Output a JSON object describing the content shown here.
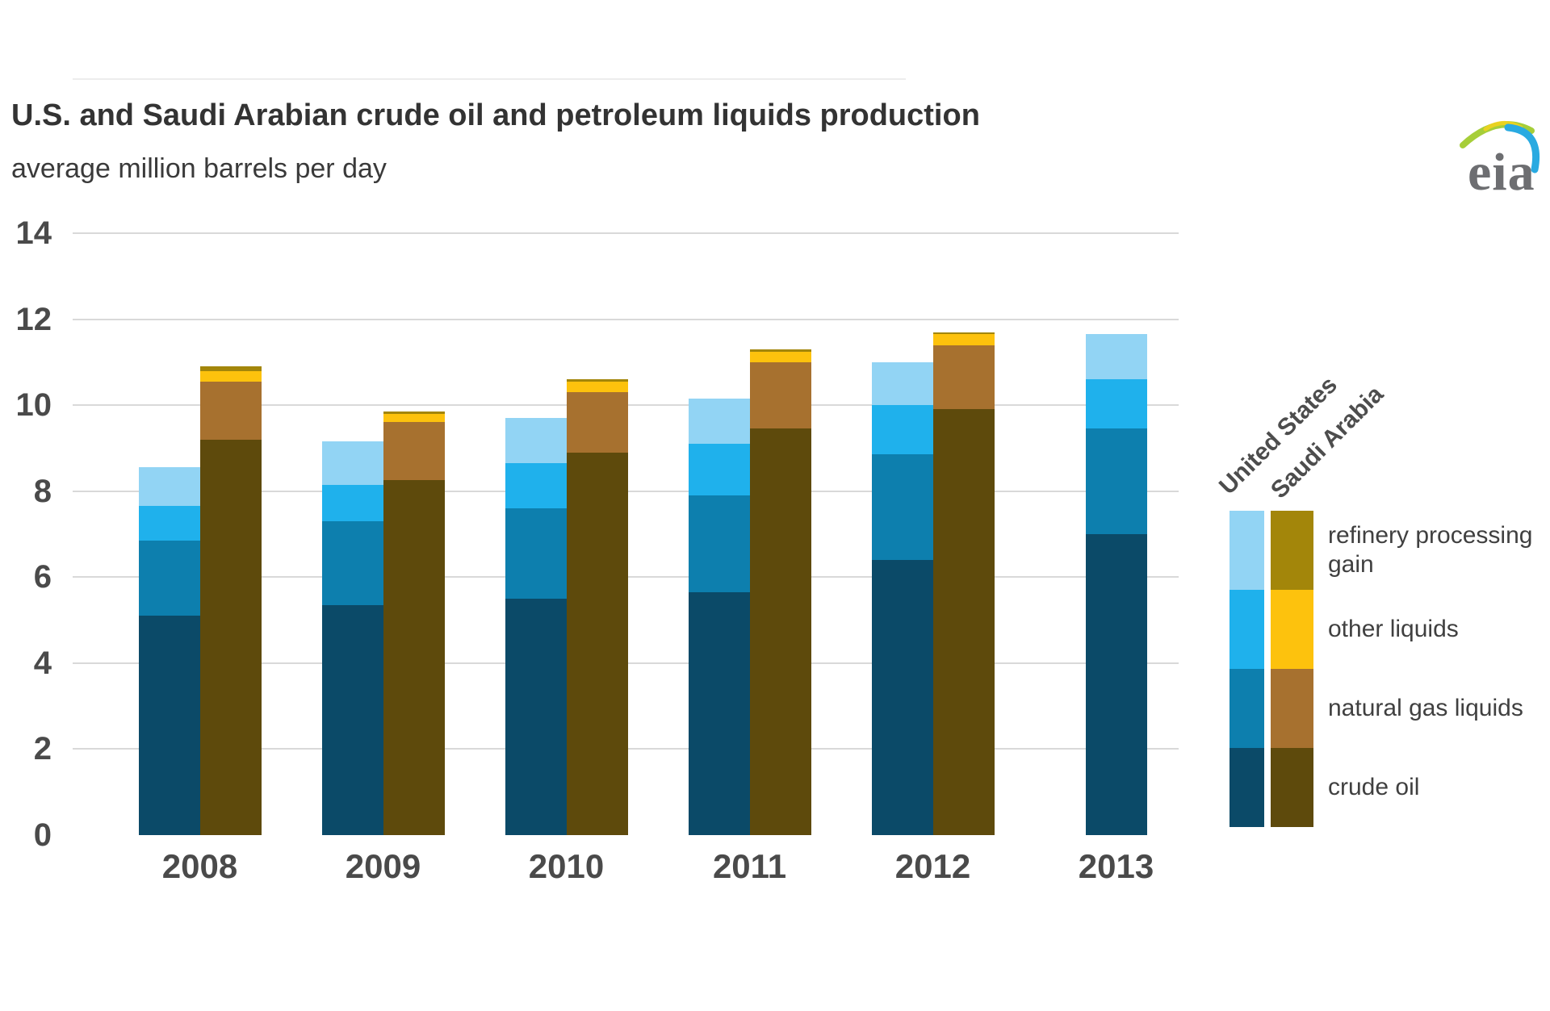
{
  "header": {
    "title": "U.S. and Saudi Arabian crude oil and petroleum liquids production",
    "subtitle": "average million barrels per day"
  },
  "logo": {
    "text": "eia"
  },
  "colors": {
    "gridline": "#d9d9d9",
    "axis_label": "#4a4a4a",
    "title_text": "#333333",
    "legend_text": "#404040",
    "logo_gray": "#6d6e71",
    "logo_green": "#a6ce39",
    "logo_blue": "#29aae1"
  },
  "chart_data": {
    "type": "bar",
    "stacked": true,
    "grid": true,
    "legend_position": "right",
    "title": "U.S. and Saudi Arabian crude oil and petroleum liquids production",
    "subtitle": "average million barrels per day",
    "ylabel": "average million barrels per day",
    "xlabel": "",
    "ylim": [
      0,
      14
    ],
    "yticks": [
      0,
      2,
      4,
      6,
      8,
      10,
      12,
      14
    ],
    "categories": [
      "2008",
      "2009",
      "2010",
      "2011",
      "2012",
      "2013"
    ],
    "segments_bottom_to_top": [
      "crude oil",
      "natural gas liquids",
      "other liquids",
      "refinery processing gain"
    ],
    "series": [
      {
        "name": "United States",
        "colors_bottom_to_top": [
          "#0b4a68",
          "#0d7fae",
          "#1fb1ec",
          "#92d4f4"
        ],
        "values": [
          [
            5.1,
            1.75,
            0.8,
            0.9
          ],
          [
            5.35,
            1.95,
            0.85,
            1.0
          ],
          [
            5.5,
            2.1,
            1.05,
            1.05
          ],
          [
            5.65,
            2.25,
            1.2,
            1.05
          ],
          [
            6.4,
            2.45,
            1.15,
            1.0
          ],
          [
            7.0,
            2.45,
            1.15,
            1.05
          ]
        ],
        "totals": [
          8.55,
          9.15,
          9.7,
          10.15,
          11.0,
          11.65
        ]
      },
      {
        "name": "Saudi Arabia",
        "colors_bottom_to_top": [
          "#5e4a0c",
          "#a7712f",
          "#fdc20d",
          "#a3860a"
        ],
        "values": [
          [
            9.2,
            1.35,
            0.25,
            0.1
          ],
          [
            8.25,
            1.35,
            0.2,
            0.05
          ],
          [
            8.9,
            1.4,
            0.25,
            0.05
          ],
          [
            9.45,
            1.55,
            0.25,
            0.05
          ],
          [
            9.9,
            1.5,
            0.25,
            0.05
          ],
          null
        ],
        "totals": [
          10.9,
          9.85,
          10.6,
          11.3,
          11.7,
          null
        ]
      }
    ]
  },
  "legend": {
    "col_headers": [
      "United States",
      "Saudi Arabia"
    ],
    "items_top_to_bottom": [
      {
        "label": "refinery processing gain"
      },
      {
        "label": "other liquids"
      },
      {
        "label": "natural gas liquids"
      },
      {
        "label": "crude oil"
      }
    ]
  }
}
